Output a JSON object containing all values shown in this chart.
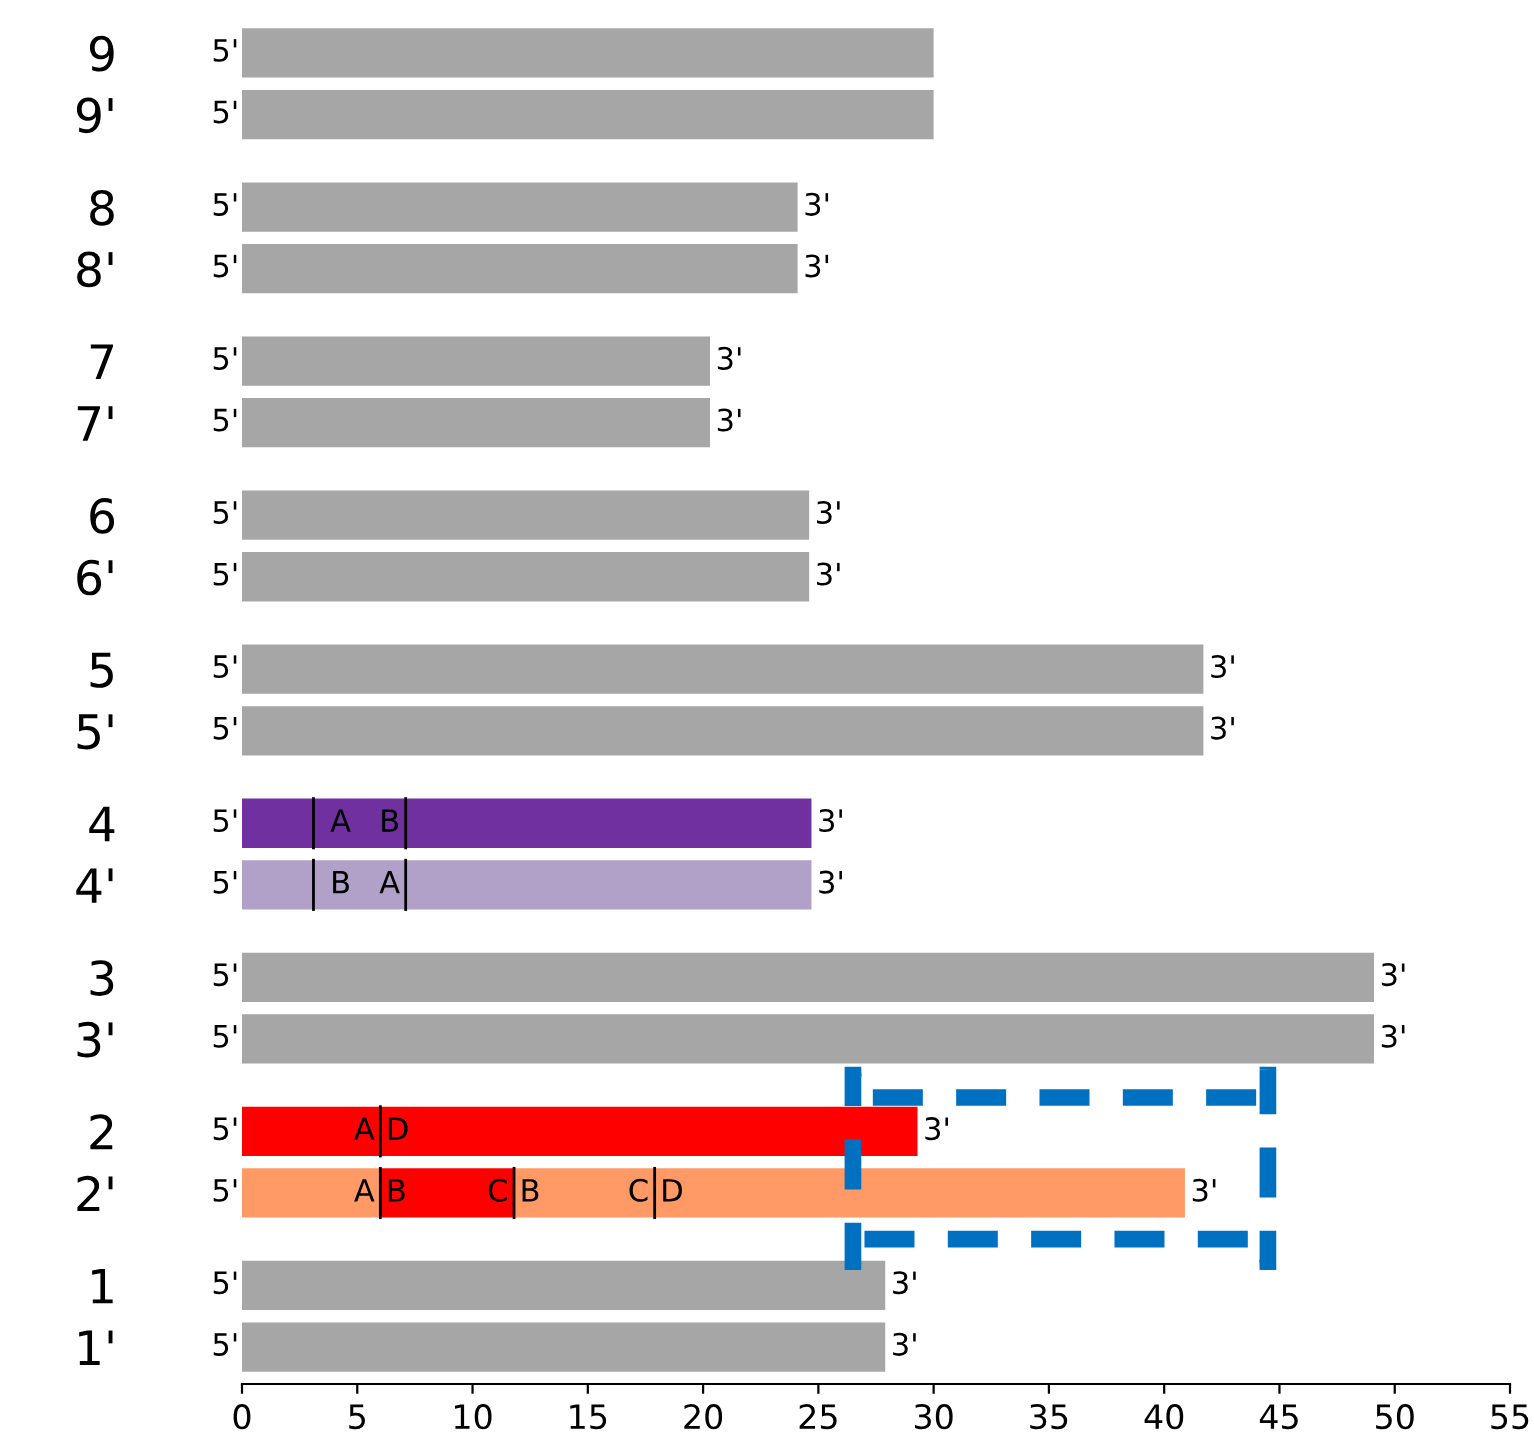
{
  "chart_data": {
    "type": "bar",
    "orientation": "horizontal",
    "stacked": true,
    "categories": [
      "9",
      "9'",
      "8",
      "8'",
      "7",
      "7'",
      "6",
      "6'",
      "5",
      "5'",
      "4",
      "4'",
      "3",
      "3'",
      "2",
      "2'",
      "1",
      "1'"
    ],
    "series": [
      {
        "values": [
          30,
          30,
          24.1,
          24.1,
          20.3,
          20.3,
          24.6,
          24.6,
          41.7,
          41.7,
          3.1,
          3.1,
          49.1,
          49.1,
          6.0,
          6.0,
          27.9,
          27.9
        ],
        "colors": [
          "#a6a6a6",
          "#a6a6a6",
          "#a6a6a6",
          "#a6a6a6",
          "#a6a6a6",
          "#a6a6a6",
          "#a6a6a6",
          "#a6a6a6",
          "#a6a6a6",
          "#a6a6a6",
          "#7030a0",
          "#b1a0c7",
          "#a6a6a6",
          "#a6a6a6",
          "#ff0000",
          "#ff9966",
          "#a6a6a6",
          "#a6a6a6"
        ]
      },
      {
        "values": [
          null,
          null,
          null,
          null,
          null,
          null,
          null,
          null,
          null,
          null,
          4.0,
          4.0,
          null,
          null,
          23.3,
          5.8,
          null,
          null
        ],
        "colors": [
          "#a6a6a6",
          "#a6a6a6",
          "#a6a6a6",
          "#a6a6a6",
          "#a6a6a6",
          "#a6a6a6",
          "#a6a6a6",
          "#a6a6a6",
          "#a6a6a6",
          "#a6a6a6",
          "#7030a0",
          "#b1a0c7",
          "#a6a6a6",
          "#a6a6a6",
          "#ff0000",
          "#ff0000",
          "#a6a6a6",
          "#a6a6a6"
        ]
      },
      {
        "values": [
          null,
          null,
          null,
          null,
          null,
          null,
          null,
          null,
          null,
          null,
          17.6,
          17.6,
          null,
          null,
          null,
          6.1,
          null,
          null
        ],
        "colors": [
          "#a6a6a6",
          "#a6a6a6",
          "#a6a6a6",
          "#a6a6a6",
          "#a6a6a6",
          "#a6a6a6",
          "#a6a6a6",
          "#a6a6a6",
          "#a6a6a6",
          "#a6a6a6",
          "#7030a0",
          "#b1a0c7",
          "#a6a6a6",
          "#a6a6a6",
          "#ff0000",
          "#ff9966",
          "#a6a6a6",
          "#a6a6a6"
        ]
      },
      {
        "values": [
          null,
          null,
          null,
          null,
          null,
          null,
          null,
          null,
          null,
          null,
          null,
          null,
          null,
          null,
          null,
          23.0,
          null,
          null
        ],
        "colors": [
          "#a6a6a6",
          "#a6a6a6",
          "#a6a6a6",
          "#a6a6a6",
          "#a6a6a6",
          "#a6a6a6",
          "#a6a6a6",
          "#a6a6a6",
          "#a6a6a6",
          "#a6a6a6",
          "#7030a0",
          "#b1a0c7",
          "#a6a6a6",
          "#a6a6a6",
          "#ff0000",
          "#ff9966",
          "#a6a6a6",
          "#a6a6a6"
        ]
      }
    ],
    "xlim": [
      0,
      55
    ],
    "xticks": [
      0,
      5,
      10,
      15,
      20,
      25,
      30,
      35,
      40,
      45,
      50,
      55
    ],
    "annotations": [
      {
        "text": "5'",
        "x": 0,
        "y": "9"
      },
      {
        "text": "5'",
        "x": 0,
        "y": "9'"
      },
      {
        "text": "5'",
        "x": 0,
        "y": "8"
      },
      {
        "text": "3'",
        "x": 24.1,
        "y": "8"
      },
      {
        "text": "5'",
        "x": 0,
        "y": "8'"
      },
      {
        "text": "3'",
        "x": 24.1,
        "y": "8'"
      },
      {
        "text": "5'",
        "x": 0,
        "y": "7"
      },
      {
        "text": "3'",
        "x": 20.3,
        "y": "7"
      },
      {
        "text": "5'",
        "x": 0,
        "y": "7'"
      },
      {
        "text": "3'",
        "x": 20.3,
        "y": "7'"
      },
      {
        "text": "5'",
        "x": 0,
        "y": "6"
      },
      {
        "text": "3'",
        "x": 24.6,
        "y": "6"
      },
      {
        "text": "5'",
        "x": 0,
        "y": "6'"
      },
      {
        "text": "3'",
        "x": 24.6,
        "y": "6'"
      },
      {
        "text": "5'",
        "x": 0,
        "y": "5"
      },
      {
        "text": "3'",
        "x": 41.7,
        "y": "5"
      },
      {
        "text": "5'",
        "x": 0,
        "y": "5'"
      },
      {
        "text": "3'",
        "x": 41.7,
        "y": "5'"
      },
      {
        "text": "5'",
        "x": 0,
        "y": "4"
      },
      {
        "text": "3'",
        "x": 24.7,
        "y": "4"
      },
      {
        "text": "5'",
        "x": 0,
        "y": "4'"
      },
      {
        "text": "3'",
        "x": 24.7,
        "y": "4'"
      },
      {
        "text": "5'",
        "x": 0,
        "y": "3"
      },
      {
        "text": "3'",
        "x": 49.1,
        "y": "3"
      },
      {
        "text": "5'",
        "x": 0,
        "y": "3'"
      },
      {
        "text": "3'",
        "x": 49.1,
        "y": "3'"
      },
      {
        "text": "5'",
        "x": 0,
        "y": "2"
      },
      {
        "text": "3'",
        "x": 29.3,
        "y": "2"
      },
      {
        "text": "5'",
        "x": 0,
        "y": "2'"
      },
      {
        "text": "3'",
        "x": 40.9,
        "y": "2'"
      },
      {
        "text": "5'",
        "x": 0,
        "y": "1"
      },
      {
        "text": "3'",
        "x": 27.9,
        "y": "1"
      },
      {
        "text": "5'",
        "x": 0,
        "y": "1'"
      },
      {
        "text": "3'",
        "x": 27.9,
        "y": "1'"
      },
      {
        "text": "A",
        "x": 3.1,
        "y": "4"
      },
      {
        "text": "B",
        "x": 7.1,
        "y": "4"
      },
      {
        "text": "B",
        "x": 3.1,
        "y": "4'"
      },
      {
        "text": "A",
        "x": 7.1,
        "y": "4'"
      },
      {
        "text": "A",
        "x": 6.0,
        "y": "2"
      },
      {
        "text": "D",
        "x": 6.0,
        "y": "2"
      },
      {
        "text": "A",
        "x": 6.0,
        "y": "2'"
      },
      {
        "text": "B",
        "x": 6.0,
        "y": "2'"
      },
      {
        "text": "C",
        "x": 11.8,
        "y": "2'"
      },
      {
        "text": "B",
        "x": 11.8,
        "y": "2'"
      },
      {
        "text": "C",
        "x": 17.9,
        "y": "2'"
      },
      {
        "text": "D",
        "x": 17.9,
        "y": "2'"
      }
    ]
  }
}
